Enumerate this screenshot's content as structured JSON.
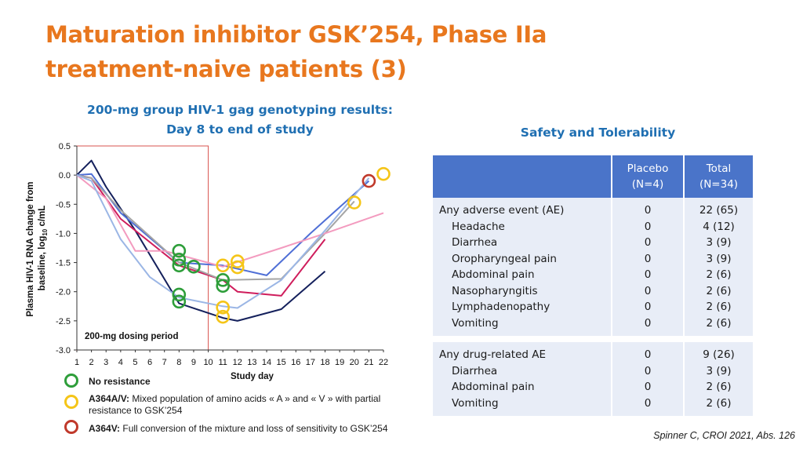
{
  "header": {
    "title_line1": "Maturation inhibitor GSK’254, Phase IIa",
    "title_line2": "treatment-naive patients (3)"
  },
  "chart_title_line1": "200-mg group HIV-1 gag genotyping results:",
  "chart_title_line2": "Day 8 to end of study",
  "chart_data": {
    "type": "line",
    "xlabel": "Study day",
    "ylabel_line1": "Plasma HIV-1 RNA change from",
    "ylabel_line2": "baseline, log",
    "ylabel_sub": "10",
    "ylabel_unit": " c/mL",
    "xlim": [
      1,
      22
    ],
    "ylim": [
      -3.0,
      0.5
    ],
    "x_ticks": [
      "1",
      "2",
      "3",
      "4",
      "5",
      "6",
      "7",
      "8",
      "9",
      "10",
      "11",
      "12",
      "13",
      "14",
      "15",
      "16",
      "17",
      "18",
      "19",
      "20",
      "21",
      "22"
    ],
    "y_ticks": [
      "0.5",
      "0.0",
      "-0.5",
      "-1.0",
      "-1.5",
      "-2.0",
      "-2.5",
      "-3.0"
    ],
    "dosing_period": {
      "label": "200-mg dosing period",
      "x_end": 10
    },
    "series": [
      {
        "color": "#14205c",
        "points": [
          [
            1,
            0
          ],
          [
            2,
            0.25
          ],
          [
            3,
            -0.2
          ],
          [
            5,
            -0.95
          ],
          [
            8,
            -2.2
          ],
          [
            11,
            -2.45
          ],
          [
            12,
            -2.5
          ],
          [
            15,
            -2.3
          ],
          [
            18,
            -1.65
          ]
        ]
      },
      {
        "color": "#cf1d5c",
        "points": [
          [
            1,
            0
          ],
          [
            2,
            -0.05
          ],
          [
            4,
            -0.75
          ],
          [
            8,
            -1.55
          ],
          [
            11,
            -1.8
          ],
          [
            12,
            -2.0
          ],
          [
            15,
            -2.07
          ],
          [
            18,
            -1.1
          ]
        ]
      },
      {
        "color": "#4f6fd6",
        "points": [
          [
            1,
            0
          ],
          [
            2,
            0.02
          ],
          [
            4,
            -0.65
          ],
          [
            8,
            -1.5
          ],
          [
            11,
            -1.55
          ],
          [
            14,
            -1.72
          ],
          [
            17,
            -1.0
          ],
          [
            21,
            -0.1
          ]
        ]
      },
      {
        "color": "#a5a5a5",
        "points": [
          [
            1,
            0
          ],
          [
            2,
            -0.05
          ],
          [
            4,
            -0.6
          ],
          [
            8,
            -1.5
          ],
          [
            11,
            -1.8
          ],
          [
            15,
            -1.78
          ],
          [
            18,
            -1.0
          ],
          [
            20,
            -0.45
          ]
        ]
      },
      {
        "color": "#f39bbf",
        "points": [
          [
            1,
            0
          ],
          [
            3,
            -0.4
          ],
          [
            5,
            -1.3
          ],
          [
            7,
            -1.3
          ],
          [
            11,
            -1.57
          ],
          [
            15,
            -1.25
          ],
          [
            18,
            -1.0
          ],
          [
            22,
            -0.65
          ]
        ]
      },
      {
        "color": "#9bb6e5",
        "points": [
          [
            1,
            0
          ],
          [
            2,
            -0.1
          ],
          [
            4,
            -1.1
          ],
          [
            6,
            -1.75
          ],
          [
            8,
            -2.1
          ],
          [
            11,
            -2.25
          ],
          [
            12,
            -2.28
          ],
          [
            15,
            -1.8
          ],
          [
            18,
            -0.95
          ],
          [
            21,
            -0.05
          ]
        ]
      }
    ],
    "markers": [
      {
        "type": "no_resistance",
        "x": 8,
        "y": -1.3
      },
      {
        "type": "no_resistance",
        "x": 8,
        "y": -1.45
      },
      {
        "type": "no_resistance",
        "x": 8,
        "y": -1.55
      },
      {
        "type": "no_resistance",
        "x": 9,
        "y": -1.57
      },
      {
        "type": "no_resistance",
        "x": 8,
        "y": -2.05
      },
      {
        "type": "no_resistance",
        "x": 8,
        "y": -2.17
      },
      {
        "type": "no_resistance",
        "x": 11,
        "y": -1.8
      },
      {
        "type": "no_resistance",
        "x": 11,
        "y": -1.9
      },
      {
        "type": "mixed",
        "x": 11,
        "y": -1.55
      },
      {
        "type": "mixed",
        "x": 12,
        "y": -1.48
      },
      {
        "type": "mixed",
        "x": 12,
        "y": -1.58
      },
      {
        "type": "mixed",
        "x": 11,
        "y": -2.27
      },
      {
        "type": "mixed",
        "x": 11,
        "y": -2.43
      },
      {
        "type": "mixed",
        "x": 20,
        "y": -0.47
      },
      {
        "type": "mixed",
        "x": 22,
        "y": 0.02
      },
      {
        "type": "full",
        "x": 21,
        "y": -0.1
      }
    ],
    "marker_colors": {
      "no_resistance": "#2e9e3a",
      "mixed": "#f5c518",
      "full": "#c0392b"
    }
  },
  "legend": {
    "no_resistance": {
      "bold": "No resistance",
      "text": "",
      "color": "#2e9e3a"
    },
    "mixed": {
      "bold": "A364A/V:",
      "text": " Mixed population of amino acids « A » and « V » with partial resistance to GSK’254",
      "color": "#f5c518"
    },
    "full": {
      "bold": "A364V:",
      "text": " Full conversion of the mixture and loss of sensitivity to GSK’254",
      "color": "#c0392b"
    }
  },
  "safety": {
    "title": "Safety and Tolerability",
    "header": {
      "col1": "",
      "col2_line1": "Placebo",
      "col2_line2": "(N=4)",
      "col3_line1": "Total",
      "col3_line2": "(N=34)"
    },
    "rows": [
      {
        "label": "Any adverse event (AE)",
        "placebo": "0",
        "total": "22 (65)"
      },
      {
        "label": "Headache",
        "placebo": "0",
        "total": "4 (12)"
      },
      {
        "label": "Diarrhea",
        "placebo": "0",
        "total": "3 (9)"
      },
      {
        "label": "Oropharyngeal pain",
        "placebo": "0",
        "total": "3 (9)"
      },
      {
        "label": "Abdominal pain",
        "placebo": "0",
        "total": "2 (6)"
      },
      {
        "label": "Nasopharyngitis",
        "placebo": "0",
        "total": "2 (6)"
      },
      {
        "label": "Lymphadenopathy",
        "placebo": "0",
        "total": "2 (6)"
      },
      {
        "label": "Vomiting",
        "placebo": "0",
        "total": "2 (6)"
      },
      {
        "label": "Any drug-related AE",
        "placebo": "0",
        "total": "9 (26)"
      },
      {
        "label": "Diarrhea",
        "placebo": "0",
        "total": "3 (9)"
      },
      {
        "label": "Abdominal pain",
        "placebo": "0",
        "total": "2 (6)"
      },
      {
        "label": "Vomiting",
        "placebo": "0",
        "total": "2 (6)"
      }
    ]
  },
  "citation": "Spinner C, CROI 2021, Abs. 126"
}
